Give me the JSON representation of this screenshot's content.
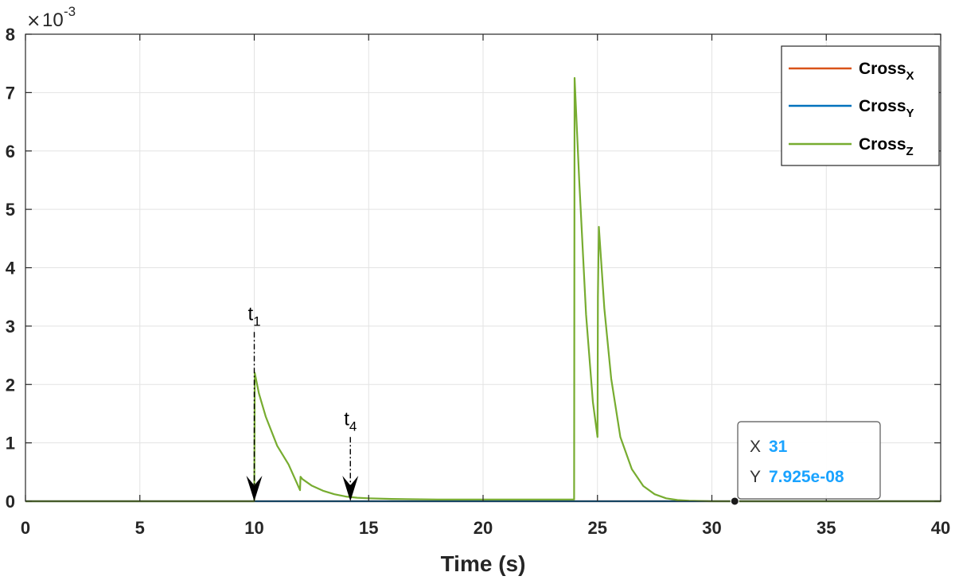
{
  "chart_data": {
    "type": "line",
    "xlabel": "Time (s)",
    "ylabel": "",
    "xlim": [
      0,
      40
    ],
    "ylim": [
      0,
      0.008
    ],
    "y_exponent_label": {
      "base": "10",
      "exp": "-3"
    },
    "x_ticks": [
      "0",
      "5",
      "10",
      "15",
      "20",
      "25",
      "30",
      "35",
      "40"
    ],
    "y_ticks": [
      "0",
      "1",
      "2",
      "3",
      "4",
      "5",
      "6",
      "7",
      "8"
    ],
    "grid": true,
    "legend_position": "top-right",
    "series": [
      {
        "name_base": "Cross",
        "name_sub": "X",
        "color": "#d95319",
        "x": [
          0,
          40
        ],
        "y": [
          0,
          0
        ]
      },
      {
        "name_base": "Cross",
        "name_sub": "Y",
        "color": "#0072bd",
        "x": [
          0,
          40
        ],
        "y": [
          0,
          0
        ]
      },
      {
        "name_base": "Cross",
        "name_sub": "Z",
        "color": "#77ac30",
        "x": [
          0,
          10,
          10.02,
          10.2,
          10.5,
          11.0,
          11.5,
          12.0,
          12.02,
          12.1,
          12.5,
          13.0,
          13.5,
          14.0,
          14.5,
          15.0,
          16.0,
          18.0,
          20.0,
          22.0,
          23.98,
          24.0,
          24.2,
          24.5,
          24.8,
          25.0,
          25.02,
          25.06,
          25.3,
          25.6,
          26.0,
          26.5,
          27.0,
          27.5,
          28.0,
          28.5,
          29.0,
          30.0,
          31.0,
          40.0
        ],
        "y": [
          0,
          0,
          0.0022,
          0.00185,
          0.00145,
          0.00095,
          0.00063,
          0.00019,
          0.00042,
          0.00038,
          0.00027,
          0.00018,
          0.00012,
          8e-05,
          6e-05,
          5e-05,
          4e-05,
          3e-05,
          3e-05,
          3e-05,
          3e-05,
          0.00725,
          0.0055,
          0.0032,
          0.0017,
          0.0011,
          0.0035,
          0.0047,
          0.0033,
          0.0021,
          0.0011,
          0.00055,
          0.00026,
          0.00012,
          5e-05,
          2e-05,
          1e-05,
          0.0,
          8e-08,
          0.0
        ]
      }
    ],
    "annotations": [
      {
        "label_base": "t",
        "label_sub": "1",
        "x": 10,
        "y_label": 0.0031,
        "y_arrow_start": 0.0029,
        "y_arrow_end": 0.0
      },
      {
        "label_base": "t",
        "label_sub": "4",
        "x": 14.2,
        "y_label": 0.0013,
        "y_arrow_start": 0.0011,
        "y_arrow_end": 0.0
      }
    ],
    "datatip": {
      "x": 31,
      "y": 7.925e-08,
      "x_prefix": "X",
      "y_prefix": "Y",
      "x_text": "31",
      "y_text": "7.925e-08"
    }
  }
}
